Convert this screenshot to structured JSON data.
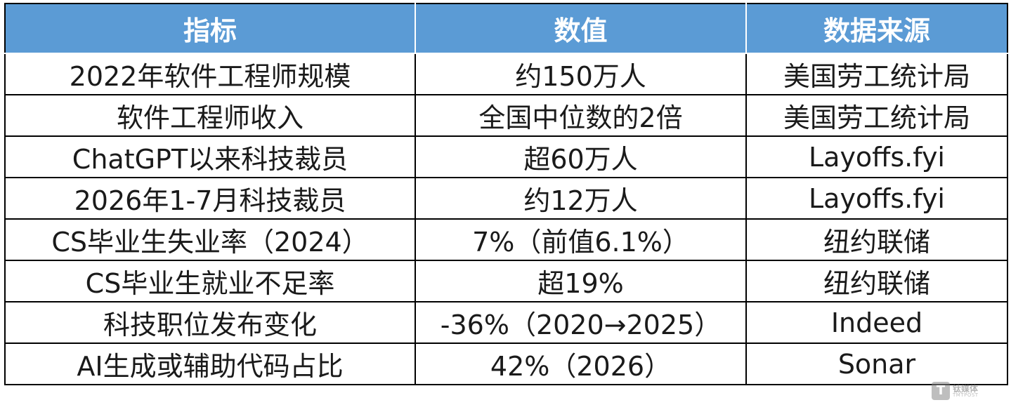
{
  "table": {
    "headers": [
      "指标",
      "数值",
      "数据来源"
    ],
    "rows": [
      [
        "2022年软件工程师规模",
        "约150万人",
        "美国劳工统计局"
      ],
      [
        "软件工程师收入",
        "全国中位数的2倍",
        "美国劳工统计局"
      ],
      [
        "ChatGPT以来科技裁员",
        "超60万人",
        "Layoffs.fyi"
      ],
      [
        "2026年1-7月科技裁员",
        "约12万人",
        "Layoffs.fyi"
      ],
      [
        "CS毕业生失业率（2024）",
        "7%（前值6.1%）",
        "纽约联储"
      ],
      [
        "CS毕业生就业不足率",
        "超19%",
        "纽约联储"
      ],
      [
        "科技职位发布变化",
        "-36%（2020→2025）",
        "Indeed"
      ],
      [
        "AI生成或辅助代码占比",
        "42%（2026）",
        "Sonar"
      ]
    ]
  },
  "watermark": {
    "logo_letter": "T",
    "text_cn": "钛媒体",
    "text_en": "TMTPOST"
  },
  "colors": {
    "header_bg": "#5b9bd5",
    "header_text": "#ffffff",
    "cell_text": "#1a1a1a",
    "border": "#000000"
  }
}
